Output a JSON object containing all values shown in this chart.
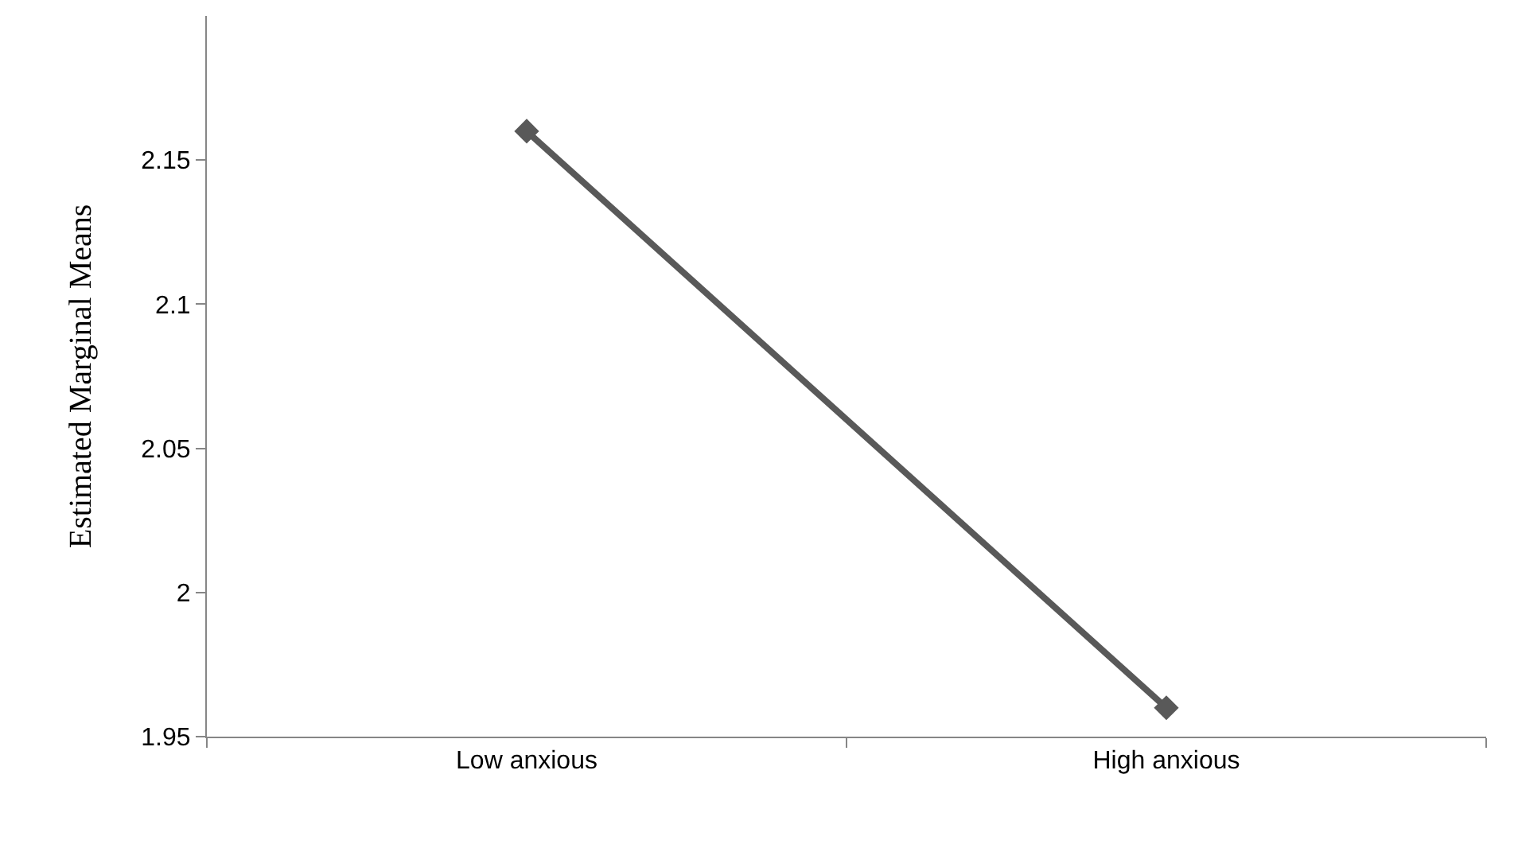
{
  "chart_data": {
    "type": "line",
    "ylabel": "Estimated Marginal Means",
    "categories": [
      "Low anxious",
      "High anxious"
    ],
    "series": [
      {
        "color": "#595959",
        "values": [
          2.16,
          1.96
        ]
      }
    ],
    "ylim": [
      1.95,
      2.2
    ],
    "yticks": [
      1.95,
      2,
      2.05,
      2.1,
      2.15
    ],
    "marker": "diamond",
    "grid": false,
    "legend": false
  }
}
